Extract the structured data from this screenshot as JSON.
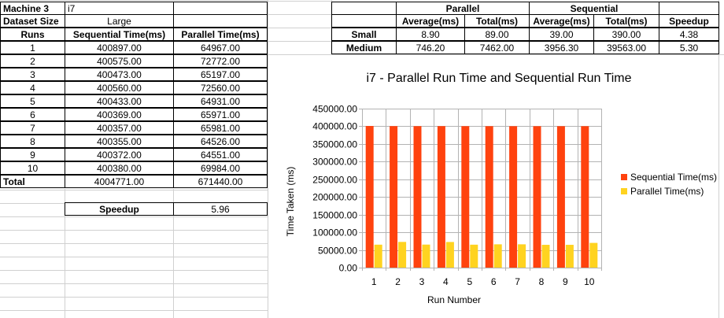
{
  "left_table": {
    "machine_label": "Machine 3",
    "machine_value": "i7",
    "dataset_label": "Dataset Size",
    "dataset_value": "Large",
    "headers": [
      "Runs",
      "Sequential Time(ms)",
      "Parallel Time(ms)"
    ],
    "rows": [
      [
        "1",
        "400897.00",
        "64967.00"
      ],
      [
        "2",
        "400575.00",
        "72772.00"
      ],
      [
        "3",
        "400473.00",
        "65197.00"
      ],
      [
        "4",
        "400560.00",
        "72560.00"
      ],
      [
        "5",
        "400433.00",
        "64931.00"
      ],
      [
        "6",
        "400369.00",
        "65971.00"
      ],
      [
        "7",
        "400357.00",
        "65981.00"
      ],
      [
        "8",
        "400355.00",
        "64526.00"
      ],
      [
        "9",
        "400372.00",
        "64551.00"
      ],
      [
        "10",
        "400380.00",
        "69984.00"
      ]
    ],
    "total_label": "Total",
    "total_sequential": "4004771.00",
    "total_parallel": "671440.00",
    "speedup_label": "Speedup",
    "speedup_value": "5.96"
  },
  "summary_table": {
    "group_parallel": "Parallel",
    "group_sequential": "Sequential",
    "sub_headers": [
      "Average(ms)",
      "Total(ms)",
      "Average(ms)",
      "Total(ms)",
      "Speedup"
    ],
    "rows": [
      {
        "label": "Small",
        "values": [
          "8.90",
          "89.00",
          "39.00",
          "390.00",
          "4.38"
        ]
      },
      {
        "label": "Medium",
        "values": [
          "746.20",
          "7462.00",
          "3956.30",
          "39563.00",
          "5.30"
        ]
      }
    ]
  },
  "chart_data": {
    "type": "bar",
    "title": "i7 - Parallel Run Time and Sequential Run Time",
    "xlabel": "Run Number",
    "ylabel": "Time Taken (ms)",
    "categories": [
      "1",
      "2",
      "3",
      "4",
      "5",
      "6",
      "7",
      "8",
      "9",
      "10"
    ],
    "ylim": [
      0,
      450000
    ],
    "y_ticks": [
      "0.00",
      "50000.00",
      "100000.00",
      "150000.00",
      "200000.00",
      "250000.00",
      "300000.00",
      "350000.00",
      "400000.00",
      "450000.00"
    ],
    "grid": true,
    "legend_position": "right",
    "series": [
      {
        "name": "Sequential Time(ms)",
        "color": "#ff420e",
        "values": [
          400897,
          400575,
          400473,
          400560,
          400433,
          400369,
          400357,
          400355,
          400372,
          400380
        ]
      },
      {
        "name": "Parallel Time(ms)",
        "color": "#ffd320",
        "values": [
          64967,
          72772,
          65197,
          72560,
          64931,
          65971,
          65981,
          64526,
          64551,
          69984
        ]
      }
    ]
  }
}
